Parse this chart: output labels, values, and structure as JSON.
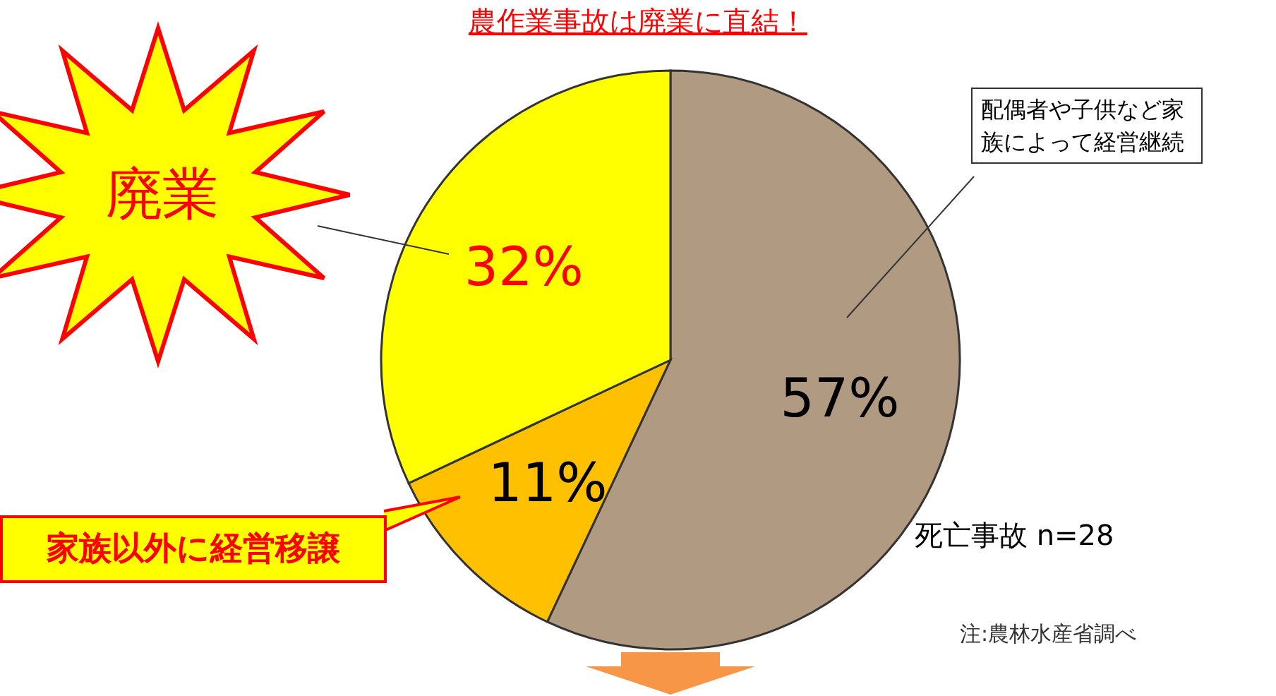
{
  "chart_data": {
    "type": "pie",
    "title": "農作業事故は廃業に直結！",
    "categories": [
      "配偶者や子供など家族によって経営継続",
      "家族以外に経営移譲",
      "廃業"
    ],
    "values": [
      57,
      11,
      32
    ],
    "colors": [
      "#b09a82",
      "#ffc000",
      "#ffff00"
    ],
    "value_labels": [
      "57%",
      "11%",
      "32%"
    ],
    "annotations": [
      "死亡事故 n=28",
      "注:農林水産省調べ"
    ]
  }
}
